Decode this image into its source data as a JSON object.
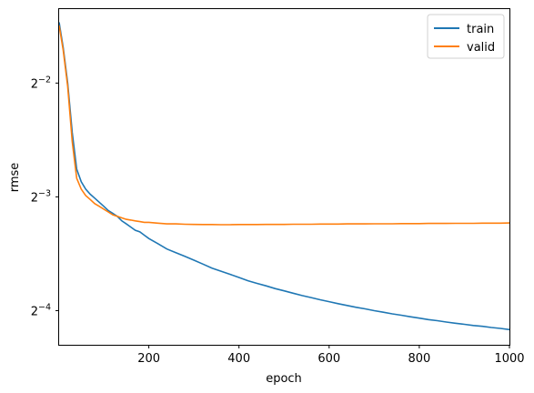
{
  "chart_data": {
    "type": "line",
    "title": "",
    "xlabel": "epoch",
    "ylabel": "rmse",
    "xlim": [
      1,
      1000
    ],
    "ylim_log2": [
      -4.3,
      -1.35
    ],
    "y_scale": "log2",
    "x_ticks": [
      200,
      400,
      600,
      800,
      1000
    ],
    "y_ticks": [
      {
        "exp": -4,
        "base": "2",
        "sup": "−4"
      },
      {
        "exp": -3,
        "base": "2",
        "sup": "−3"
      },
      {
        "exp": -2,
        "base": "2",
        "sup": "−2"
      }
    ],
    "grid": false,
    "legend_position": "top-right",
    "series": [
      {
        "name": "train",
        "color": "#1f77b4",
        "x": [
          1,
          10,
          20,
          30,
          40,
          50,
          60,
          70,
          80,
          90,
          100,
          110,
          120,
          130,
          140,
          150,
          160,
          170,
          180,
          190,
          200,
          220,
          240,
          260,
          280,
          300,
          320,
          340,
          360,
          380,
          400,
          420,
          440,
          460,
          480,
          500,
          520,
          540,
          560,
          580,
          600,
          620,
          640,
          660,
          680,
          700,
          720,
          740,
          760,
          780,
          800,
          820,
          840,
          860,
          880,
          900,
          920,
          940,
          960,
          980,
          1000
        ],
        "y": [
          0.362,
          0.31,
          0.25,
          0.185,
          0.148,
          0.137,
          0.131,
          0.127,
          0.124,
          0.121,
          0.118,
          0.115,
          0.113,
          0.111,
          0.108,
          0.106,
          0.104,
          0.102,
          0.101,
          0.099,
          0.097,
          0.094,
          0.091,
          0.089,
          0.087,
          0.085,
          0.083,
          0.081,
          0.0795,
          0.078,
          0.0765,
          0.075,
          0.0738,
          0.0727,
          0.0715,
          0.0705,
          0.0695,
          0.0685,
          0.0677,
          0.0668,
          0.066,
          0.0652,
          0.0645,
          0.0638,
          0.0632,
          0.0625,
          0.0619,
          0.0613,
          0.0608,
          0.0602,
          0.0597,
          0.0592,
          0.0588,
          0.0583,
          0.0579,
          0.0575,
          0.0571,
          0.0568,
          0.0564,
          0.0561,
          0.0557
        ]
      },
      {
        "name": "valid",
        "color": "#ff7f0e",
        "x": [
          1,
          10,
          20,
          30,
          40,
          50,
          60,
          70,
          80,
          90,
          100,
          110,
          120,
          130,
          140,
          150,
          160,
          170,
          180,
          190,
          200,
          220,
          240,
          260,
          280,
          300,
          320,
          340,
          360,
          380,
          400,
          420,
          440,
          460,
          480,
          500,
          520,
          540,
          560,
          580,
          600,
          620,
          640,
          660,
          680,
          700,
          720,
          740,
          760,
          780,
          800,
          820,
          840,
          860,
          880,
          900,
          920,
          940,
          960,
          980,
          1000
        ],
        "y": [
          0.355,
          0.305,
          0.245,
          0.175,
          0.14,
          0.131,
          0.126,
          0.123,
          0.12,
          0.118,
          0.116,
          0.114,
          0.112,
          0.111,
          0.11,
          0.109,
          0.1085,
          0.108,
          0.1075,
          0.107,
          0.107,
          0.1065,
          0.106,
          0.106,
          0.1058,
          0.1057,
          0.1056,
          0.1056,
          0.1055,
          0.1055,
          0.1056,
          0.1056,
          0.1056,
          0.1057,
          0.1057,
          0.1057,
          0.1058,
          0.1058,
          0.1058,
          0.1059,
          0.1059,
          0.1059,
          0.106,
          0.106,
          0.106,
          0.1061,
          0.1061,
          0.1061,
          0.1062,
          0.1062,
          0.1062,
          0.1063,
          0.1063,
          0.1063,
          0.1064,
          0.1064,
          0.1064,
          0.1065,
          0.1065,
          0.1065,
          0.1066
        ]
      }
    ]
  }
}
